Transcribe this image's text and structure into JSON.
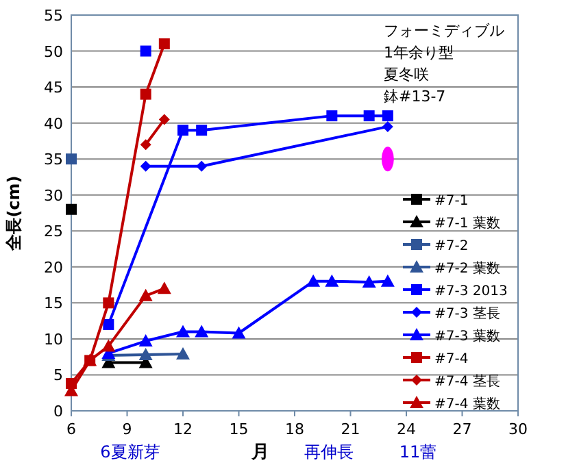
{
  "chart_data": {
    "type": "line",
    "ylabel": "全長(cm)",
    "xlabel": "月",
    "xlim": [
      6,
      30
    ],
    "xticks": [
      6,
      9,
      12,
      15,
      18,
      21,
      24,
      27,
      30
    ],
    "ylim": [
      0,
      55
    ],
    "yticks": [
      0,
      5,
      10,
      15,
      20,
      25,
      30,
      35,
      40,
      45,
      50,
      55
    ],
    "grid": "y",
    "legend": "bottom right",
    "annotations": [
      "フォーミディブル",
      "1年余り型",
      "夏冬咲",
      "鉢#13-7",
      "6夏新芽",
      "再伸長",
      "11蕾"
    ],
    "series": [
      {
        "name": "#7-1",
        "color": "#000000",
        "marker": "square",
        "x": [
          6
        ],
        "values": [
          28
        ]
      },
      {
        "name": "#7-1 葉数",
        "color": "#000000",
        "marker": "triangle",
        "x": [
          8,
          10
        ],
        "values": [
          6.7,
          6.7
        ]
      },
      {
        "name": "#7-2",
        "color": "#2f5597",
        "marker": "square",
        "x": [
          6
        ],
        "values": [
          35
        ]
      },
      {
        "name": "#7-2 葉数",
        "color": "#2f5597",
        "marker": "triangle",
        "x": [
          8,
          10,
          12
        ],
        "values": [
          7.7,
          7.8,
          7.9
        ]
      },
      {
        "name": "#7-3 2013",
        "color": "#0000ff",
        "marker": "square",
        "x": [
          8,
          12,
          13,
          20,
          22,
          23
        ],
        "values": [
          12,
          39,
          39,
          41,
          41,
          41
        ]
      },
      {
        "type": "scatter",
        "color": "#0000ff",
        "marker": "square",
        "x": [
          10
        ],
        "values": [
          50
        ]
      },
      {
        "name": "#7-3 茎長",
        "color": "#0000ff",
        "marker": "diamond",
        "x": [
          10,
          13,
          23
        ],
        "values": [
          34,
          34,
          39.5
        ]
      },
      {
        "name": "#7-3 葉数",
        "color": "#0000ff",
        "marker": "triangle",
        "x": [
          8,
          10,
          12,
          13,
          15,
          19,
          20,
          22,
          23
        ],
        "values": [
          8,
          9.7,
          11,
          11,
          10.8,
          18,
          18,
          17.9,
          18
        ]
      },
      {
        "name": "#7-4",
        "color": "#c00000",
        "marker": "square",
        "x": [
          6,
          7,
          8,
          10,
          11
        ],
        "values": [
          3.8,
          7,
          15,
          44,
          51
        ]
      },
      {
        "name": "#7-4 茎長",
        "color": "#c00000",
        "marker": "diamond",
        "x": [
          10,
          11
        ],
        "values": [
          37,
          40.5
        ]
      },
      {
        "name": "#7-4 葉数",
        "color": "#c00000",
        "marker": "triangle",
        "x": [
          6,
          7,
          8,
          10,
          11
        ],
        "values": [
          2.8,
          7,
          9,
          16,
          17
        ]
      },
      {
        "type": "scatter",
        "color": "#ff00ff",
        "marker": "circle",
        "x": [
          23
        ],
        "values": [
          35
        ]
      }
    ]
  }
}
